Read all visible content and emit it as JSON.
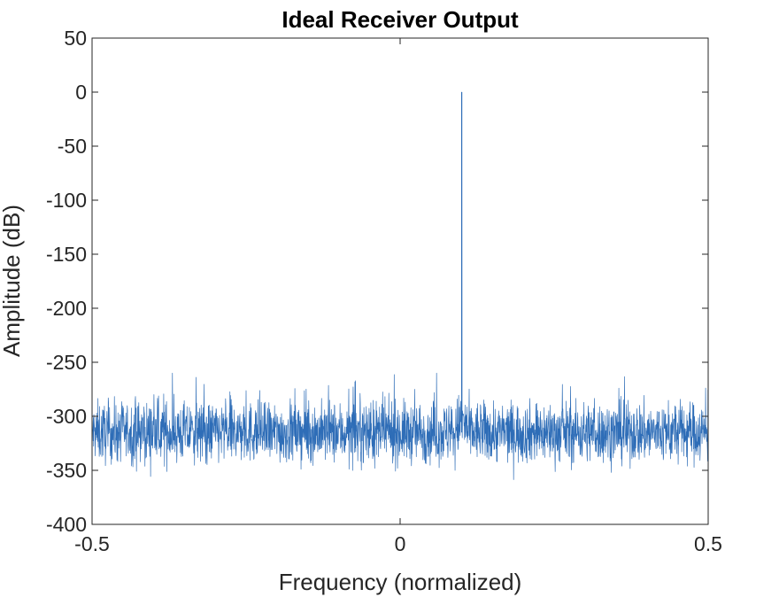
{
  "chart_data": {
    "type": "line",
    "title": "Ideal Receiver Output",
    "xlabel": "Frequency (normalized)",
    "ylabel": "Amplitude (dB)",
    "xlim": [
      -0.5,
      0.5
    ],
    "ylim": [
      -400,
      50
    ],
    "xticks": [
      -0.5,
      0,
      0.5
    ],
    "xtick_labels": [
      "-0.5",
      "0",
      "0.5"
    ],
    "yticks": [
      50,
      0,
      -50,
      -100,
      -150,
      -200,
      -250,
      -300,
      -350,
      -400
    ],
    "ytick_labels": [
      "50",
      "0",
      "-50",
      "-100",
      "-150",
      "-200",
      "-250",
      "-300",
      "-350",
      "-400"
    ],
    "grid": false,
    "line_color": "#2e6db7",
    "series": [
      {
        "peak": {
          "x": 0.1,
          "y": 0
        },
        "noise_floor": {
          "mean_y": -315,
          "min_y": -365,
          "max_y": -260
        },
        "x": [
          -0.5,
          -0.45,
          -0.4,
          -0.35,
          -0.3,
          -0.25,
          -0.2,
          -0.15,
          -0.1,
          -0.05,
          0,
          0.05,
          0.09,
          0.1,
          0.11,
          0.15,
          0.2,
          0.25,
          0.3,
          0.35,
          0.4,
          0.45,
          0.5
        ],
        "y": [
          -310,
          -315,
          -318,
          -312,
          -316,
          -314,
          -317,
          -313,
          -315,
          -316,
          -314,
          -315,
          -300,
          0,
          -300,
          -316,
          -314,
          -315,
          -313,
          -317,
          -314,
          -316,
          -312
        ]
      }
    ]
  }
}
